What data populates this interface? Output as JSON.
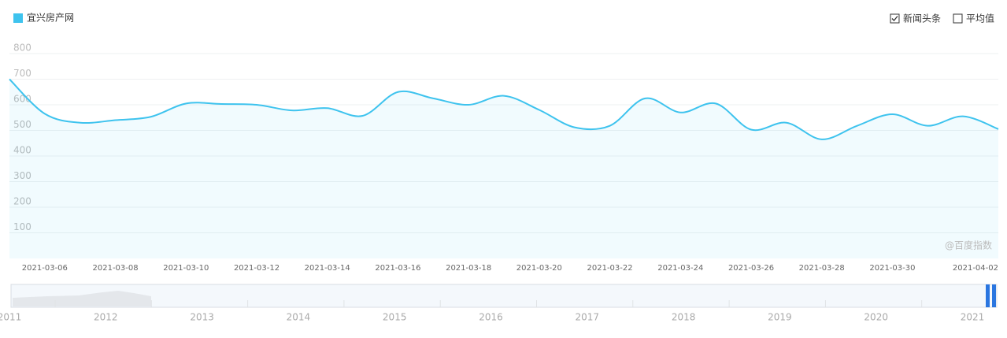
{
  "chart_data": {
    "type": "line",
    "categories": [
      null,
      "2021-03-06",
      null,
      "2021-03-08",
      null,
      "2021-03-10",
      null,
      "2021-03-12",
      null,
      "2021-03-14",
      null,
      "2021-03-16",
      null,
      "2021-03-18",
      null,
      "2021-03-20",
      null,
      "2021-03-22",
      null,
      "2021-03-24",
      null,
      "2021-03-26",
      null,
      "2021-03-28",
      null,
      "2021-03-30",
      null,
      null,
      "2021-04-02"
    ],
    "series": [
      {
        "name": "宜兴房产网",
        "color": "#3ec3ee",
        "values": [
          700,
          565,
          530,
          540,
          553,
          605,
          603,
          600,
          578,
          587,
          557,
          650,
          625,
          600,
          635,
          580,
          512,
          518,
          625,
          570,
          605,
          503,
          530,
          465,
          518,
          563,
          518,
          555,
          505
        ]
      }
    ],
    "ylim": [
      0,
      800
    ],
    "yticks": [
      100,
      200,
      300,
      400,
      500,
      600,
      700,
      800
    ],
    "grid": true,
    "legend": "top-left",
    "annotation": "@百度指数",
    "toggles": [
      {
        "label": "新闻头条",
        "checked": true
      },
      {
        "label": "平均值",
        "checked": false
      }
    ]
  },
  "navigator": {
    "labels": [
      "2011",
      "2012",
      "2013",
      "2014",
      "2015",
      "2016",
      "2017",
      "2018",
      "2019",
      "2020",
      "2021"
    ]
  }
}
